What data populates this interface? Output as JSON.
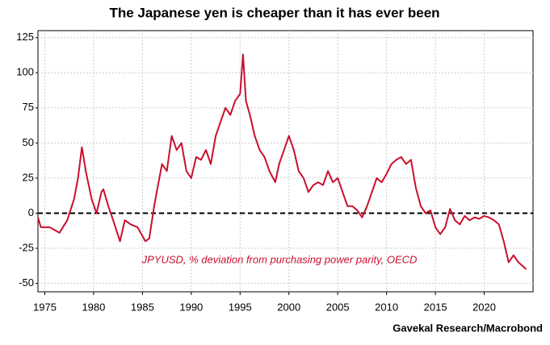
{
  "chart_data": {
    "type": "line",
    "title": "The Japanese yen is cheaper than it has ever been",
    "annotation": "JPYUSD, % deviation from purchasing power parity, OECD",
    "source": "Gavekal Research/Macrobond",
    "series": [
      {
        "name": "JPYUSD, % deviation from purchasing power parity, OECD",
        "color": "#c8102e",
        "x": [
          1974.3,
          1974.6,
          1975.5,
          1976.5,
          1977.3,
          1978,
          1978.4,
          1978.8,
          1979.2,
          1979.8,
          1980.3,
          1980.8,
          1981.0,
          1981.5,
          1982,
          1982.7,
          1983.2,
          1983.8,
          1984.5,
          1985.3,
          1985.7,
          1986.2,
          1986.6,
          1987,
          1987.5,
          1988,
          1988.5,
          1989,
          1989.5,
          1990,
          1990.5,
          1991,
          1991.5,
          1992,
          1992.5,
          1993,
          1993.5,
          1994,
          1994.5,
          1995,
          1995.3,
          1995.6,
          1996,
          1996.5,
          1997,
          1997.5,
          1998,
          1998.6,
          1999,
          1999.5,
          2000,
          2000.5,
          2001,
          2001.5,
          2002,
          2002.5,
          2003,
          2003.5,
          2004,
          2004.5,
          2005,
          2005.5,
          2006,
          2006.5,
          2007,
          2007.5,
          2008,
          2008.5,
          2009,
          2009.5,
          2010,
          2010.5,
          2011,
          2011.5,
          2012,
          2012.5,
          2013,
          2013.5,
          2014,
          2014.5,
          2015,
          2015.5,
          2016,
          2016.5,
          2017,
          2017.5,
          2018,
          2018.5,
          2019,
          2019.5,
          2020,
          2020.5,
          2021,
          2021.5,
          2022,
          2022.5,
          2023,
          2023.5,
          2024,
          2024.3
        ],
        "values": [
          -3,
          -10,
          -10,
          -14,
          -5,
          10,
          25,
          47,
          30,
          10,
          0,
          15,
          17,
          5,
          -5,
          -20,
          -5,
          -8,
          -10,
          -20,
          -18,
          5,
          20,
          35,
          30,
          55,
          45,
          50,
          30,
          25,
          40,
          38,
          45,
          35,
          55,
          65,
          75,
          70,
          80,
          85,
          113,
          80,
          70,
          55,
          45,
          40,
          30,
          22,
          35,
          45,
          55,
          45,
          30,
          25,
          15,
          20,
          22,
          20,
          30,
          22,
          25,
          15,
          5,
          5,
          2,
          -3,
          5,
          15,
          25,
          22,
          28,
          35,
          38,
          40,
          35,
          38,
          18,
          5,
          0,
          2,
          -10,
          -15,
          -10,
          3,
          -5,
          -8,
          -2,
          -5,
          -3,
          -4,
          -2,
          -3,
          -5,
          -8,
          -20,
          -35,
          -30,
          -35,
          -38,
          -40
        ]
      }
    ],
    "xlim": [
      1974.3,
      2025
    ],
    "xticks": [
      1975,
      1980,
      1985,
      1990,
      1995,
      2000,
      2005,
      2010,
      2015,
      2020
    ],
    "ylim": [
      -56,
      130
    ],
    "yticks": [
      -50,
      -25,
      0,
      25,
      50,
      75,
      100,
      125
    ],
    "hline": 0,
    "grid": true
  }
}
